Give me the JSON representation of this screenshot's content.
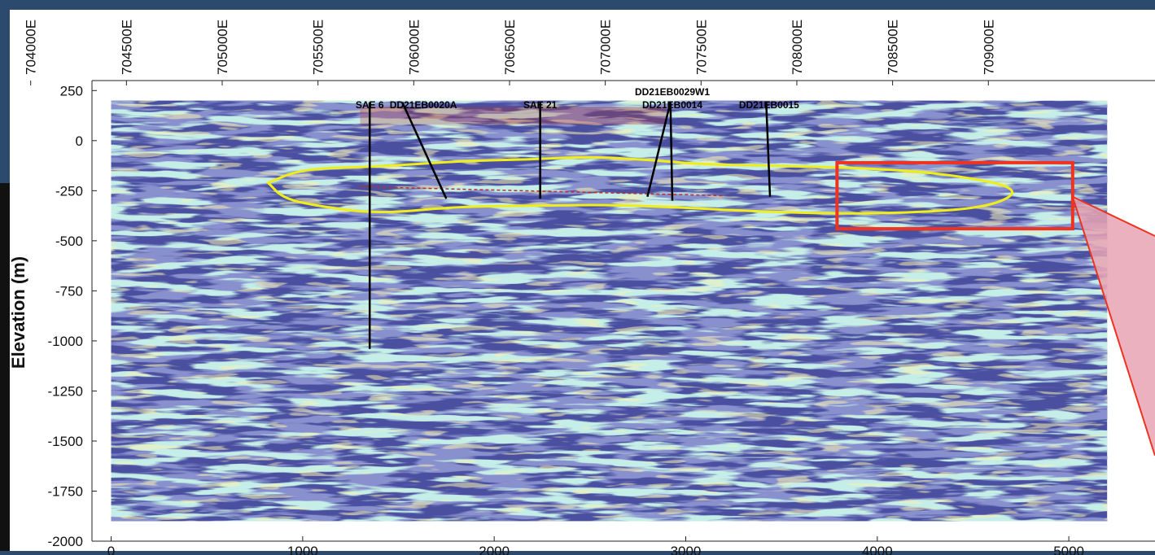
{
  "chart_data": {
    "type": "seismic-section",
    "ylabel": "Elevation (m)",
    "xlim": [
      -100,
      5450
    ],
    "ylim": [
      -2000,
      300
    ],
    "x_ticks": [
      0,
      1000,
      2000,
      3000,
      4000,
      5000
    ],
    "x_tick_labels": [
      "0",
      "1000",
      "2000",
      "3000",
      "4000",
      "5000"
    ],
    "y_ticks": [
      250,
      0,
      -250,
      -500,
      -750,
      -1000,
      -1250,
      -1500,
      -1750,
      -2000
    ],
    "y_tick_labels": [
      "250",
      "0",
      "-250",
      "-500",
      "-750",
      "-1000",
      "-1250",
      "-1500",
      "-1750",
      "-2000"
    ],
    "top_ticks": [
      -420,
      80,
      580,
      1080,
      1580,
      2080,
      2580,
      3080,
      3580,
      4080,
      4580,
      5080
    ],
    "top_tick_labels": [
      "704000E",
      "704500E",
      "705000E",
      "705500E",
      "706000E",
      "706500E",
      "707000E",
      "707500E",
      "708000E",
      "708500E",
      "709000E"
    ],
    "section_extent": {
      "x": [
        0,
        5200
      ],
      "y": [
        -1900,
        200
      ]
    },
    "drillholes": [
      {
        "label": "SAE 6",
        "collar": [
          1350,
          200
        ],
        "toe": [
          1350,
          -1040
        ]
      },
      {
        "label": "DD21EB0020A",
        "collar": [
          1520,
          200
        ],
        "toe": [
          1750,
          -290
        ]
      },
      {
        "label": "SAE 21",
        "collar": [
          2240,
          200
        ],
        "toe": [
          2240,
          -290
        ]
      },
      {
        "label": "DD21EB0029W1",
        "collar": [
          2920,
          200
        ],
        "toe": [
          2800,
          -280
        ]
      },
      {
        "label": "DD21EB0014",
        "collar": [
          2920,
          200
        ],
        "toe": [
          2930,
          -300
        ]
      },
      {
        "label": "DD21EB0015",
        "collar": [
          3420,
          200
        ],
        "toe": [
          3440,
          -280
        ]
      }
    ],
    "highlight_box": {
      "x": [
        3790,
        5020
      ],
      "y": [
        -440,
        -110
      ],
      "color": "#ee3322"
    },
    "outline_color": "#f0ee1a",
    "colors": {
      "background": "#4a4fa0",
      "positive": "#e8f0a0",
      "mid": "#5fc8a8",
      "anomaly": "#b8302a",
      "frame": "#000000",
      "callout_fill": "#e8a3b3"
    }
  }
}
